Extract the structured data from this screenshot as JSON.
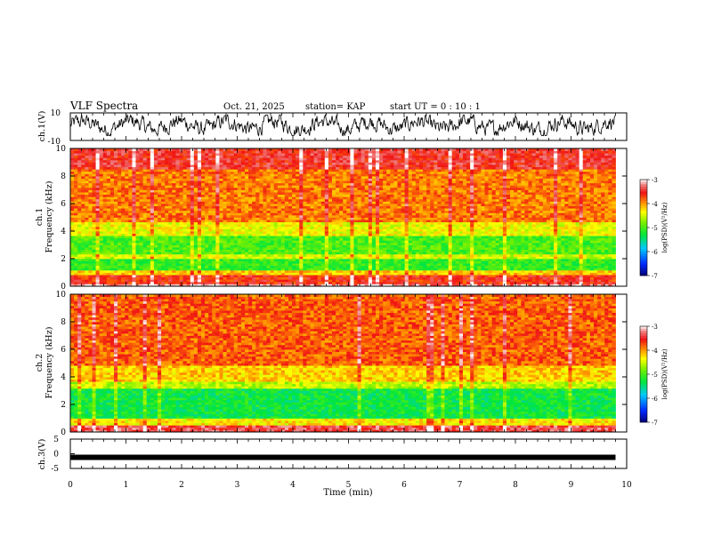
{
  "header": {
    "title": "VLF Spectra",
    "date": "Oct. 21, 2025",
    "station": "station= KAP",
    "start_ut": "start  UT  =   0  : 10 : 1"
  },
  "chart_data": [
    {
      "type": "line",
      "name": "ch1-waveform",
      "ylabel": "ch.1(V)",
      "ylim": [
        -10,
        10
      ],
      "yticks": [
        -10,
        10
      ],
      "xlim": [
        0,
        10
      ],
      "note_from_image": "dense noisy waveform oscillating mostly between about -6 and +8 V over 0 to 9.8 min",
      "x_end": 9.8
    },
    {
      "type": "heatmap",
      "name": "ch1-spectrogram",
      "ylabel_line1": "ch.1",
      "ylabel_line2": "Frequency (kHz)",
      "ylim": [
        0,
        10
      ],
      "yticks": [
        0,
        2,
        4,
        6,
        8,
        10
      ],
      "xlim": [
        0,
        10
      ],
      "x_end": 9.8,
      "colorbar": {
        "label": "log(PSD)(V²/Hz)",
        "range": [
          -7,
          -3
        ],
        "ticks": [
          "-3",
          "-4",
          "-5",
          "-6",
          "-7"
        ]
      },
      "bands": [
        {
          "from_khz": 0.0,
          "to_khz": 0.2,
          "level": -3.2
        },
        {
          "from_khz": 0.2,
          "to_khz": 0.8,
          "level": -3.6
        },
        {
          "from_khz": 0.8,
          "to_khz": 1.1,
          "level": -4.2
        },
        {
          "from_khz": 1.1,
          "to_khz": 2.0,
          "level": -5.1
        },
        {
          "from_khz": 2.0,
          "to_khz": 2.3,
          "level": -4.5
        },
        {
          "from_khz": 2.3,
          "to_khz": 3.6,
          "level": -5.0
        },
        {
          "from_khz": 3.6,
          "to_khz": 4.6,
          "level": -4.4
        },
        {
          "from_khz": 4.6,
          "to_khz": 8.5,
          "level": -3.9
        },
        {
          "from_khz": 8.5,
          "to_khz": 10.0,
          "level": -3.5
        }
      ]
    },
    {
      "type": "heatmap",
      "name": "ch2-spectrogram",
      "ylabel_line1": "ch.2",
      "ylabel_line2": "Frequency (kHz)",
      "ylim": [
        0,
        10
      ],
      "yticks": [
        0,
        2,
        4,
        6,
        8,
        10
      ],
      "xlim": [
        0,
        10
      ],
      "x_end": 9.8,
      "colorbar": {
        "label": "log(PSD)(V²/Hz)",
        "range": [
          -7,
          -3
        ],
        "ticks": [
          "-3",
          "-4",
          "-5",
          "-6",
          "-7"
        ]
      },
      "bands": [
        {
          "from_khz": 0.0,
          "to_khz": 0.5,
          "level": -3.4
        },
        {
          "from_khz": 0.5,
          "to_khz": 1.0,
          "level": -4.3
        },
        {
          "from_khz": 1.0,
          "to_khz": 3.2,
          "level": -5.3
        },
        {
          "from_khz": 3.2,
          "to_khz": 3.7,
          "level": -4.6
        },
        {
          "from_khz": 3.7,
          "to_khz": 4.8,
          "level": -4.2
        },
        {
          "from_khz": 4.8,
          "to_khz": 10.0,
          "level": -3.8
        }
      ]
    },
    {
      "type": "line",
      "name": "ch3-waveform",
      "ylabel": "ch.3(V)",
      "ylim": [
        -5,
        5
      ],
      "yticks": [
        -5,
        0,
        5
      ],
      "xlim": [
        0,
        10
      ],
      "x_end": 9.8,
      "constant_level": -1.2
    }
  ],
  "xaxis": {
    "label": "Time (min)",
    "ticks": [
      "0",
      "1",
      "2",
      "3",
      "4",
      "5",
      "6",
      "7",
      "8",
      "9",
      "10"
    ]
  }
}
